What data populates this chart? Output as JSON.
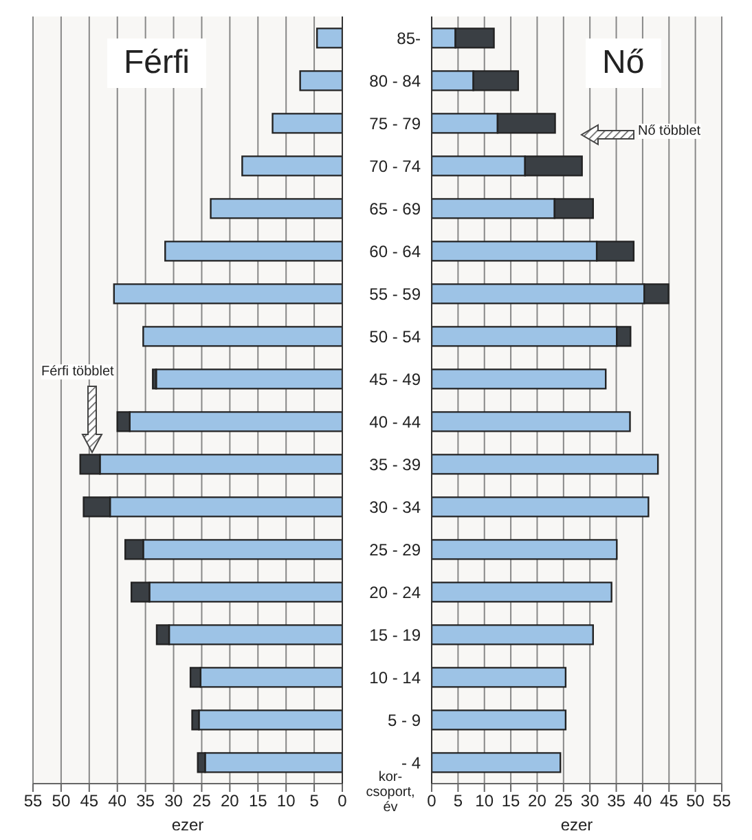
{
  "chart_data": [
    {
      "type": "bar",
      "title": "Férfi",
      "orientation": "horizontal",
      "stacked": true,
      "grid": "x",
      "tick_labels": "x",
      "xlabel": "ezer",
      "xlim": [
        55,
        0
      ],
      "xticks": [
        55,
        50,
        45,
        40,
        35,
        30,
        25,
        20,
        15,
        10,
        5,
        0
      ],
      "series": [
        {
          "color": "#9dc3e6",
          "values": [
            4.5,
            7.5,
            12.4,
            17.8,
            23.4,
            31.5,
            40.6,
            35.4,
            33.1,
            37.8,
            43.1,
            41.3,
            35.4,
            34.3,
            30.8,
            25.2,
            25.5,
            24.4
          ]
        },
        {
          "color": "#3a3f44",
          "values": [
            null,
            null,
            null,
            null,
            null,
            null,
            null,
            null,
            0.6,
            2.2,
            3.5,
            4.7,
            3.2,
            3.2,
            2.2,
            1.8,
            1.2,
            1.3
          ]
        }
      ],
      "annotations": [
        "Férfi többlet"
      ]
    },
    {
      "type": "bar",
      "title": "Nő",
      "orientation": "horizontal",
      "stacked": true,
      "grid": "x",
      "xlabel": "ezer",
      "ylabel": "kor-csoport, év",
      "xlim": [
        0,
        55
      ],
      "xticks": [
        0,
        5,
        10,
        15,
        20,
        25,
        30,
        35,
        40,
        45,
        50,
        55
      ],
      "categories": [
        "85-",
        "80 - 84",
        "75 - 79",
        "70 - 74",
        "65 - 69",
        "60 - 64",
        "55 - 59",
        "50 - 54",
        "45 - 49",
        "40 - 44",
        "35 - 39",
        "30 - 34",
        "25 - 29",
        "20 - 24",
        "15 - 19",
        "10 - 14",
        "5 - 9",
        "- 4"
      ],
      "series": [
        {
          "color": "#9dc3e6",
          "values": [
            4.5,
            7.9,
            12.5,
            17.7,
            23.3,
            31.3,
            40.3,
            35.1,
            33.0,
            37.6,
            42.9,
            41.1,
            35.1,
            34.1,
            30.6,
            25.4,
            25.4,
            24.4
          ]
        },
        {
          "color": "#3a3f44",
          "values": [
            7.3,
            8.5,
            10.9,
            10.8,
            7.3,
            7.0,
            4.6,
            2.6,
            null,
            null,
            null,
            null,
            null,
            null,
            null,
            null,
            null,
            null
          ]
        }
      ],
      "annotations": [
        "Nő többlet"
      ]
    }
  ]
}
